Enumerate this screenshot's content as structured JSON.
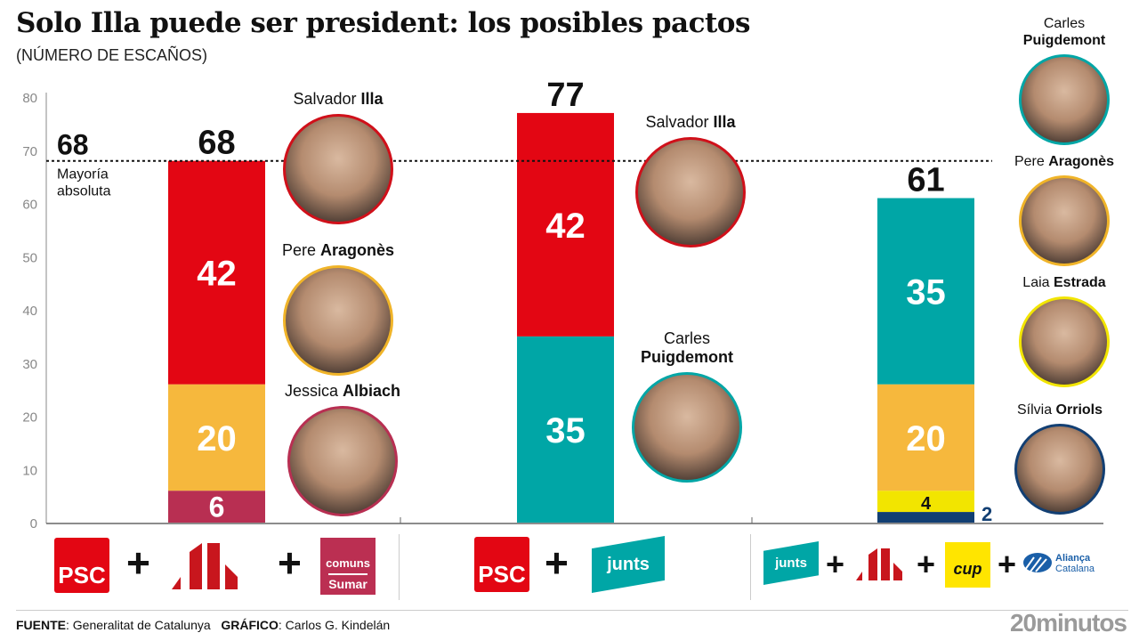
{
  "title": "Solo Illa puede ser president: los posibles pactos",
  "subtitle": "(NÚMERO DE ESCAÑOS)",
  "chart_data": {
    "type": "bar",
    "stacked": true,
    "title": "Solo Illa puede ser president: los posibles pactos",
    "ylabel": "Número de escaños",
    "ylim": [
      0,
      80
    ],
    "yticks": [
      0,
      10,
      20,
      30,
      40,
      50,
      60,
      70,
      80
    ],
    "majority": {
      "value": 68,
      "label_value": "68",
      "label_line1": "Mayoría",
      "label_line2": "absoluta"
    },
    "categories": [
      "PSC + ERC + Comuns Sumar",
      "PSC + Junts",
      "Junts + ERC + CUP + Aliança Catalana"
    ],
    "totals": [
      68,
      77,
      61
    ],
    "stacks": [
      [
        {
          "party": "Comuns Sumar",
          "value": 6,
          "color": "#b82f52"
        },
        {
          "party": "ERC",
          "value": 20,
          "color": "#f6b83d"
        },
        {
          "party": "PSC",
          "value": 42,
          "color": "#e30613"
        }
      ],
      [
        {
          "party": "Junts",
          "value": 35,
          "color": "#00a6a6"
        },
        {
          "party": "PSC",
          "value": 42,
          "color": "#e30613"
        }
      ],
      [
        {
          "party": "Aliança Catalana",
          "value": 2,
          "color": "#123f73"
        },
        {
          "party": "CUP",
          "value": 4,
          "color": "#f2e500"
        },
        {
          "party": "ERC",
          "value": 20,
          "color": "#f6b83d"
        },
        {
          "party": "Junts",
          "value": 35,
          "color": "#00a6a6"
        }
      ]
    ]
  },
  "people": [
    {
      "first": "Salvador",
      "last": "Illa",
      "color": "#d0101a"
    },
    {
      "first": "Pere",
      "last": "Aragonès",
      "color": "#f0b429"
    },
    {
      "first": "Jessica",
      "last": "Albiach",
      "color": "#b82f52"
    },
    {
      "first": "Salvador",
      "last": "Illa",
      "color": "#d0101a"
    },
    {
      "first": "Carles",
      "last": "Puigdemont",
      "color": "#00a6a6"
    },
    {
      "first": "Carles",
      "last": "Puigdemont",
      "color": "#00a6a6"
    },
    {
      "first": "Pere",
      "last": "Aragonès",
      "color": "#f0b429"
    },
    {
      "first": "Laia",
      "last": "Estrada",
      "color": "#f2e500"
    },
    {
      "first": "Sílvia",
      "last": "Orriols",
      "color": "#123f73"
    }
  ],
  "logos": {
    "psc": "PSC",
    "comuns": "comuns",
    "sumar": "Sumar",
    "junts": "junts",
    "cup": "cup",
    "alianca1": "Aliança",
    "alianca2": "Catalana",
    "plus": "+"
  },
  "footer": {
    "source_label": "FUENTE",
    "source": ": Generalitat de Catalunya",
    "graphic_label": "GRÁFICO",
    "graphic": ": Carlos G. Kindelán"
  },
  "brand": "20minutos"
}
